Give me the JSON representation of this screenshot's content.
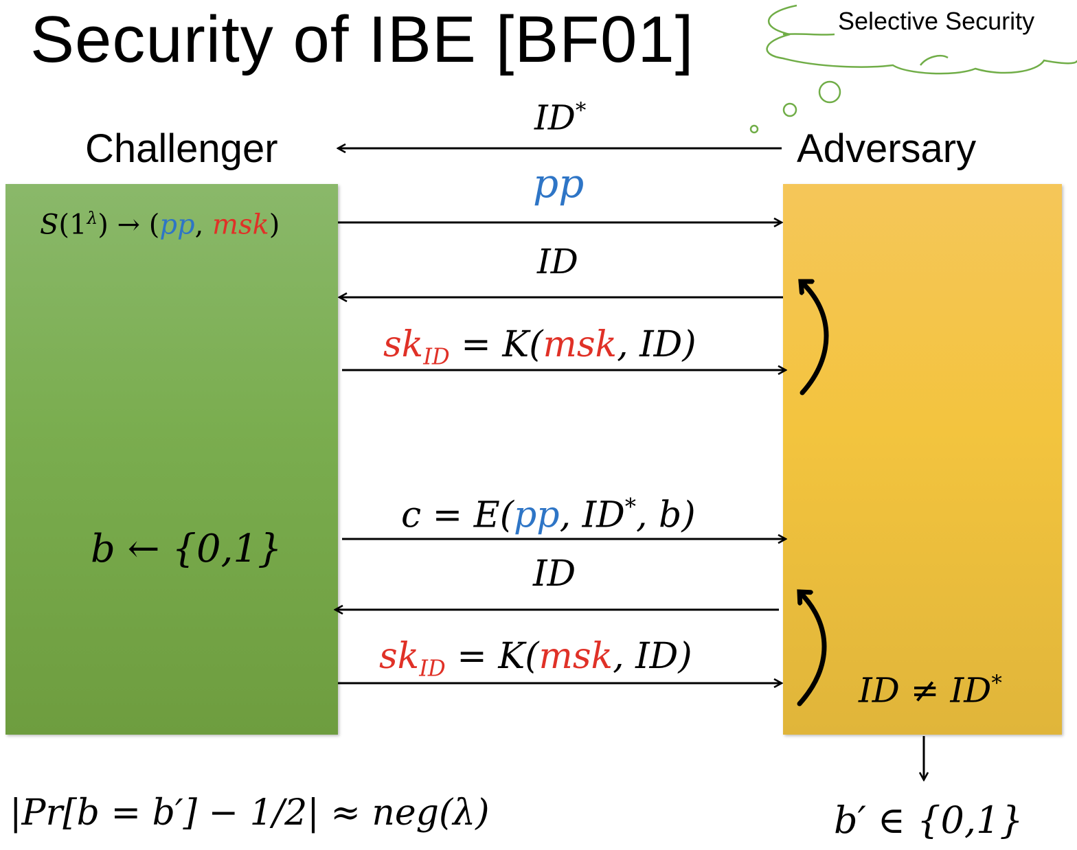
{
  "title": "Security of IBE [BF01]",
  "thought_bubble": {
    "text": "Selective Security"
  },
  "parties": {
    "challenger": "Challenger",
    "adversary": "Adversary"
  },
  "challenger_steps": {
    "setup_func": "S",
    "setup_arg": "1",
    "setup_sup": "λ",
    "setup_arrow": "→",
    "setup_pp": "pp",
    "setup_msk": "msk",
    "bit_choice": "b ← {0,1}"
  },
  "messages": {
    "id_star": {
      "label": "ID",
      "sup": "*"
    },
    "pp": {
      "label": "pp"
    },
    "query1": {
      "label": "ID"
    },
    "answer1": {
      "sk": "sk",
      "sk_sub": "ID",
      "eq": " = K(",
      "msk": "msk",
      "tail": ", ID)"
    },
    "challenge": {
      "pre": "c = E(",
      "pp": "pp",
      "mid": ", ID",
      "sup": "*",
      "tail": ", b)"
    },
    "query2": {
      "label": "ID"
    },
    "answer2": {
      "sk": "sk",
      "sk_sub": "ID",
      "eq": " = K(",
      "msk": "msk",
      "tail": ", ID)"
    }
  },
  "adversary_notes": {
    "constraint": {
      "label": "ID ≠ ID",
      "sup": "*"
    },
    "output": "b′ ∈ {0,1}"
  },
  "advantage": "|Pr[b = b′] − 1/2| ≈ neg(λ)",
  "colors": {
    "challenger_box": "#7aad4f",
    "adversary_box": "#f3c43e",
    "secret": "#e03127",
    "public": "#2e75c6",
    "cloud_outline": "#70ad47"
  }
}
